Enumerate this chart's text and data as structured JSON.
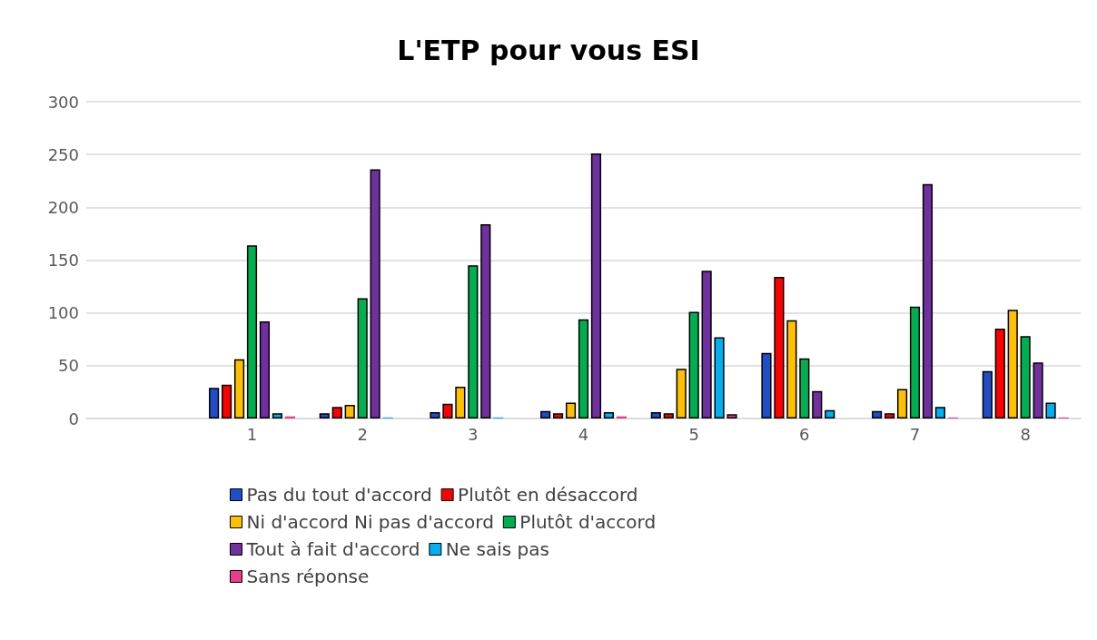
{
  "chart_data": {
    "type": "bar",
    "title": "L'ETP pour vous ESI",
    "categories": [
      null,
      "1",
      "2",
      "3",
      "4",
      "5",
      "6",
      "7",
      "8"
    ],
    "series": [
      {
        "name": "Pas du tout d'accord",
        "color": "#1f4ec8",
        "values": [
          null,
          29,
          5,
          6,
          7,
          6,
          62,
          7,
          45
        ]
      },
      {
        "name": "Plutôt en désaccord",
        "color": "#ff0000",
        "values": [
          null,
          32,
          11,
          14,
          5,
          5,
          134,
          5,
          85
        ]
      },
      {
        "name": "Ni d'accord Ni pas d'accord",
        "color": "#ffc000",
        "values": [
          null,
          56,
          13,
          30,
          15,
          47,
          93,
          28,
          103
        ]
      },
      {
        "name": "Plutôt d'accord",
        "color": "#00b050",
        "values": [
          null,
          164,
          114,
          145,
          94,
          101,
          57,
          106,
          78
        ]
      },
      {
        "name": "Tout à fait d'accord",
        "color": "#7030a0",
        "values": [
          null,
          92,
          236,
          184,
          251,
          140,
          26,
          222,
          53
        ]
      },
      {
        "name": "Ne sais pas",
        "color": "#00b0f0",
        "values": [
          null,
          5,
          1,
          1,
          6,
          77,
          8,
          11,
          15
        ]
      },
      {
        "name": "Sans réponse",
        "color": "#e83e8c",
        "values": [
          null,
          2,
          null,
          null,
          2,
          4,
          null,
          1,
          1
        ]
      }
    ],
    "ylim": [
      0,
      300
    ],
    "yticks": [
      0,
      50,
      100,
      150,
      200,
      250,
      300
    ],
    "grid": "y",
    "legend": "bottom"
  }
}
